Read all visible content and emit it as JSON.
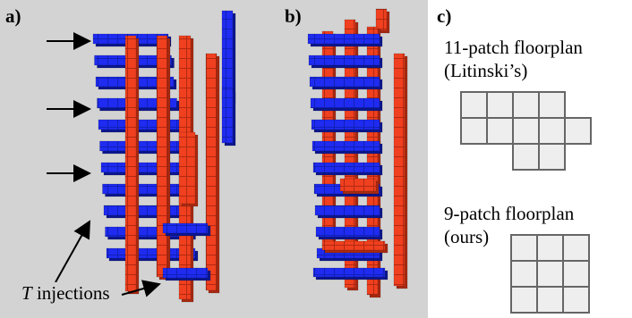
{
  "panels": {
    "a": "a)",
    "b": "b)",
    "c": "c)"
  },
  "annotation": {
    "t_italic": "T",
    "t_rest": " injections"
  },
  "floorplans": {
    "eleven": {
      "title_line1": "11-patch floorplan",
      "title_line2": "(Litinski’s)",
      "rows": [
        [
          1,
          1,
          1,
          1,
          0
        ],
        [
          1,
          1,
          1,
          1,
          1
        ],
        [
          0,
          0,
          1,
          1,
          0
        ]
      ]
    },
    "nine": {
      "title_line1": "9-patch floorplan",
      "title_line2": "(ours)",
      "rows": [
        [
          1,
          1,
          1
        ],
        [
          1,
          1,
          1
        ],
        [
          1,
          1,
          1
        ]
      ]
    }
  },
  "colors": {
    "blue": "#1f2bf0",
    "red": "#f0401f",
    "background": "#d3d3d3",
    "cell_fill": "#eeeeee",
    "cell_border": "#666666"
  }
}
